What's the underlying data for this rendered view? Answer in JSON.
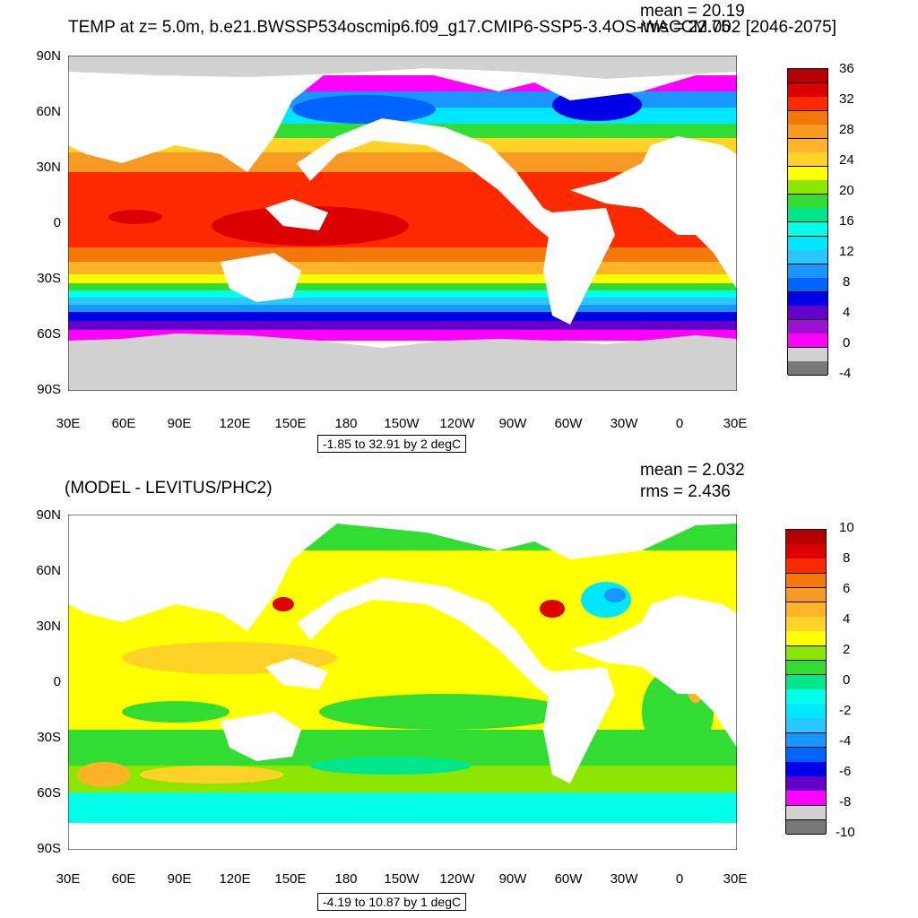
{
  "top_panel": {
    "title": "TEMP at z=   5.0m, b.e21.BWSSP534oscmip6.f09_g17.CMIP6-SSP5-3.4OS-WACCM.002 [2046-2075]",
    "mean_text": "mean = 20.19",
    "rms_text": "rms = 22.75",
    "contour_info": "-1.85 to 32.91 by 2 degC",
    "colorbar_labels": [
      "36",
      "32",
      "28",
      "24",
      "20",
      "16",
      "12",
      "8",
      "4",
      "0",
      "-4"
    ],
    "colorbar_colors": [
      "#b40000",
      "#dc0000",
      "#ff2a00",
      "#f5780a",
      "#f79a23",
      "#ffb427",
      "#ffd227",
      "#ffff00",
      "#8ce600",
      "#32dc32",
      "#00e68c",
      "#00ffe6",
      "#00e6ff",
      "#28c8ff",
      "#1996ff",
      "#0064ff",
      "#0000e6",
      "#6400c8",
      "#a010d0",
      "#ff00ff",
      "#d2d2d2",
      "#787878"
    ]
  },
  "bottom_panel": {
    "title": "(MODEL - LEVITUS/PHC2)",
    "mean_text": "mean = 2.032",
    "rms_text": "rms = 2.436",
    "contour_info": "-4.19 to 10.87 by 1 degC",
    "colorbar_labels": [
      "10",
      "8",
      "6",
      "4",
      "2",
      "0",
      "-2",
      "-4",
      "-6",
      "-8",
      "-10"
    ],
    "colorbar_colors": [
      "#b40000",
      "#dc0000",
      "#ff2a00",
      "#f5780a",
      "#f79a23",
      "#ffb427",
      "#ffd227",
      "#ffff00",
      "#8ce600",
      "#32dc32",
      "#00e68c",
      "#00ffe6",
      "#00e6ff",
      "#28c8ff",
      "#1996ff",
      "#0064ff",
      "#0000e6",
      "#6400c8",
      "#ff00ff",
      "#d2d2d2",
      "#787878"
    ]
  },
  "axes": {
    "lat_labels": [
      "90N",
      "60N",
      "30N",
      "0",
      "30S",
      "60S",
      "90S"
    ],
    "lon_labels": [
      "30E",
      "60E",
      "90E",
      "120E",
      "150E",
      "180",
      "150W",
      "120W",
      "90W",
      "60W",
      "30W",
      "0",
      "30E"
    ]
  }
}
